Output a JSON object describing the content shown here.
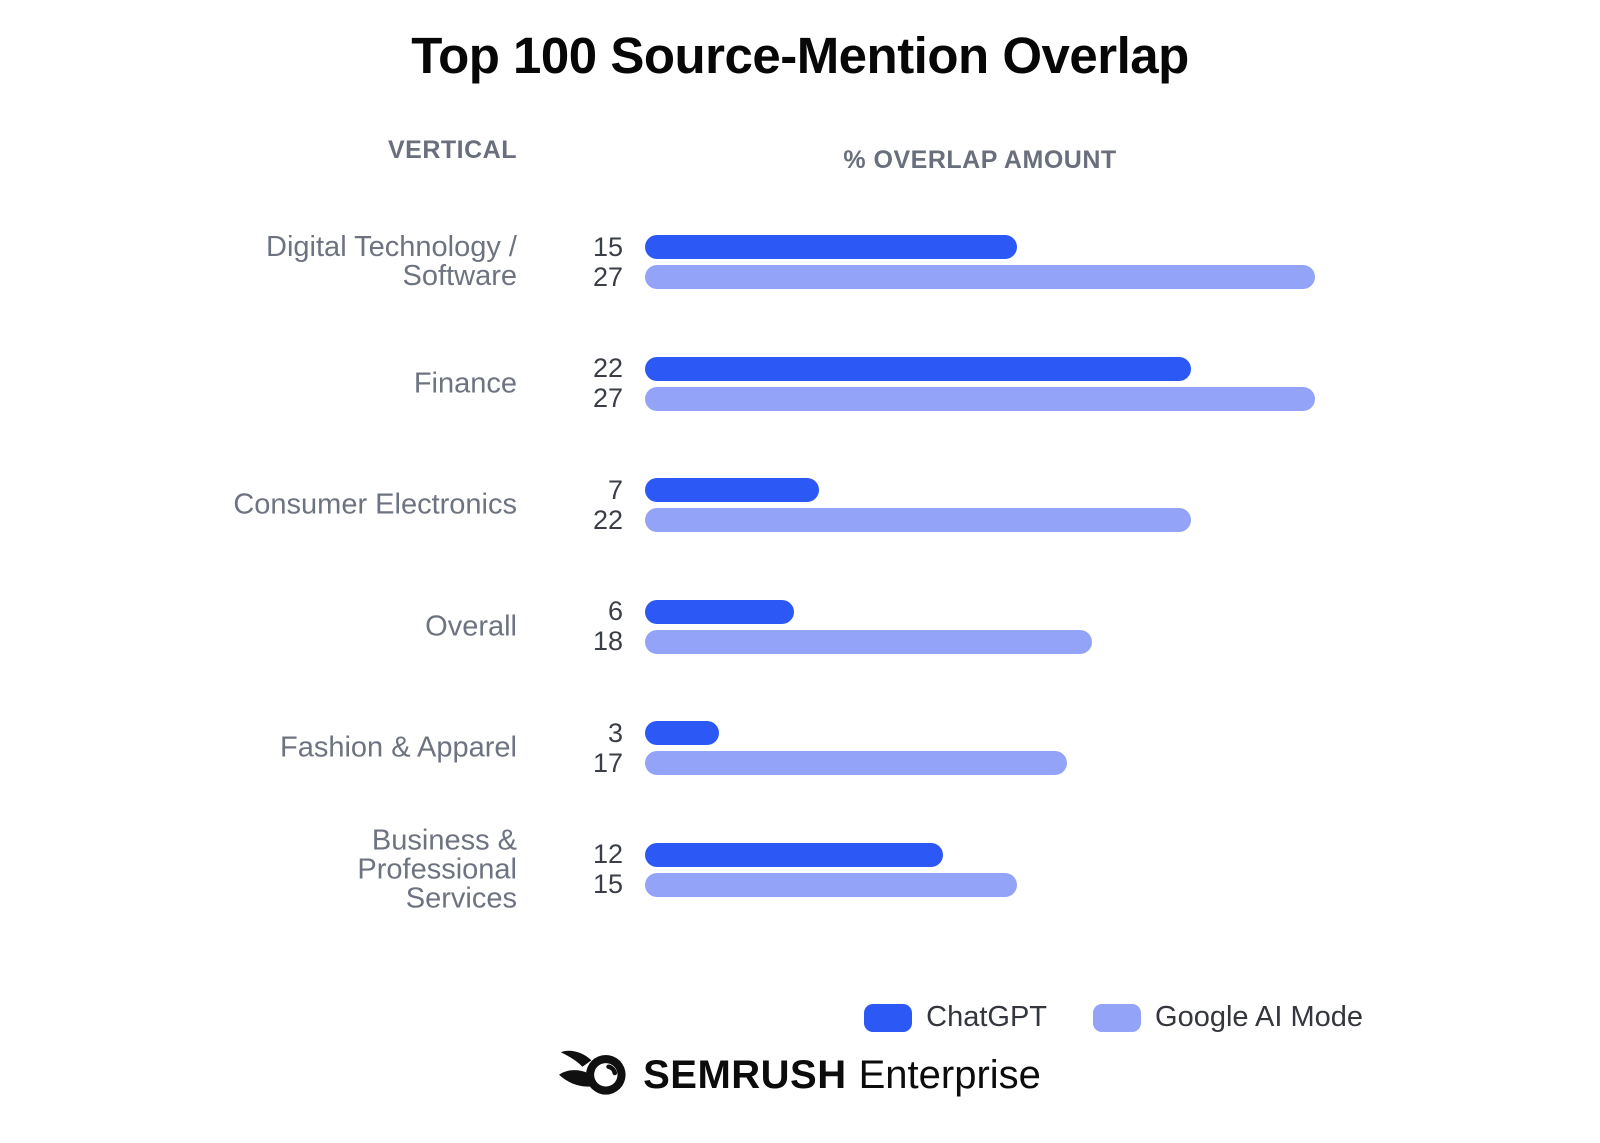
{
  "title": "Top 100 Source-Mention Overlap",
  "columns": {
    "vertical": "VERTICAL",
    "overlap": "% OVERLAP AMOUNT"
  },
  "legend": [
    {
      "label": "ChatGPT",
      "color": "#2C58F5"
    },
    {
      "label": "Google AI Mode",
      "color": "#93A4F8"
    }
  ],
  "footer": {
    "brand": "SEMRUSH",
    "suffix": "Enterprise",
    "logo_icon": "semrush-comet-icon"
  },
  "chart_data": {
    "type": "bar",
    "orientation": "horizontal",
    "title": "Top 100 Source-Mention Overlap",
    "xlabel": "% OVERLAP AMOUNT",
    "ylabel": "VERTICAL",
    "categories": [
      "Digital Technology /\nSoftware",
      "Finance",
      "Consumer Electronics",
      "Overall",
      "Fashion & Apparel",
      "Business &\nProfessional\nServices"
    ],
    "series": [
      {
        "name": "ChatGPT",
        "color": "#2C58F5",
        "values": [
          15,
          22,
          7,
          6,
          3,
          12
        ]
      },
      {
        "name": "Google AI Mode",
        "color": "#93A4F8",
        "values": [
          27,
          27,
          22,
          18,
          17,
          15
        ]
      }
    ],
    "xlim": [
      0,
      27
    ],
    "value_labels": true,
    "grid": false,
    "legend_position": "bottom-right"
  }
}
